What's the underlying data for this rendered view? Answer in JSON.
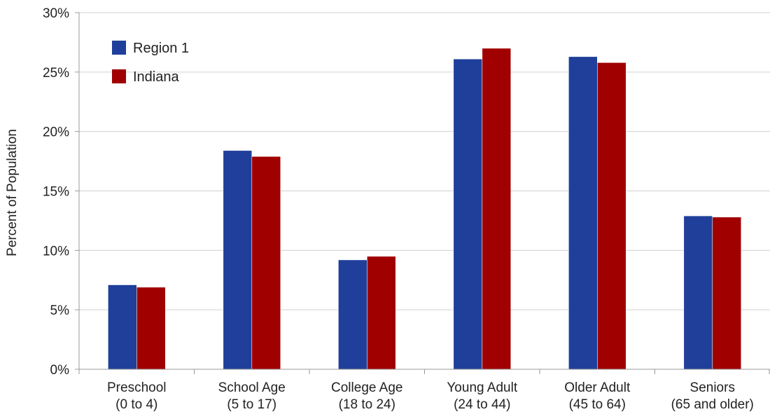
{
  "chart_data": {
    "type": "bar",
    "title": "",
    "xlabel": "",
    "ylabel": "Percent of Population",
    "ylim": [
      0,
      30
    ],
    "yticks": [
      "0%",
      "5%",
      "10%",
      "15%",
      "20%",
      "25%",
      "30%"
    ],
    "grid": true,
    "legend_position": "top-left",
    "categories": [
      [
        "Preschool",
        "(0 to 4)"
      ],
      [
        "School Age",
        "(5 to 17)"
      ],
      [
        "College Age",
        "(18 to 24)"
      ],
      [
        "Young Adult",
        "(24 to 44)"
      ],
      [
        "Older Adult",
        "(45 to 64)"
      ],
      [
        "Seniors",
        "(65 and older)"
      ]
    ],
    "series": [
      {
        "name": "Region 1",
        "color": "#1f3f9a",
        "values": [
          7.1,
          18.4,
          9.2,
          26.1,
          26.3,
          12.9
        ]
      },
      {
        "name": "Indiana",
        "color": "#a00000",
        "values": [
          6.9,
          17.9,
          9.5,
          27.0,
          25.8,
          12.8
        ]
      }
    ]
  }
}
